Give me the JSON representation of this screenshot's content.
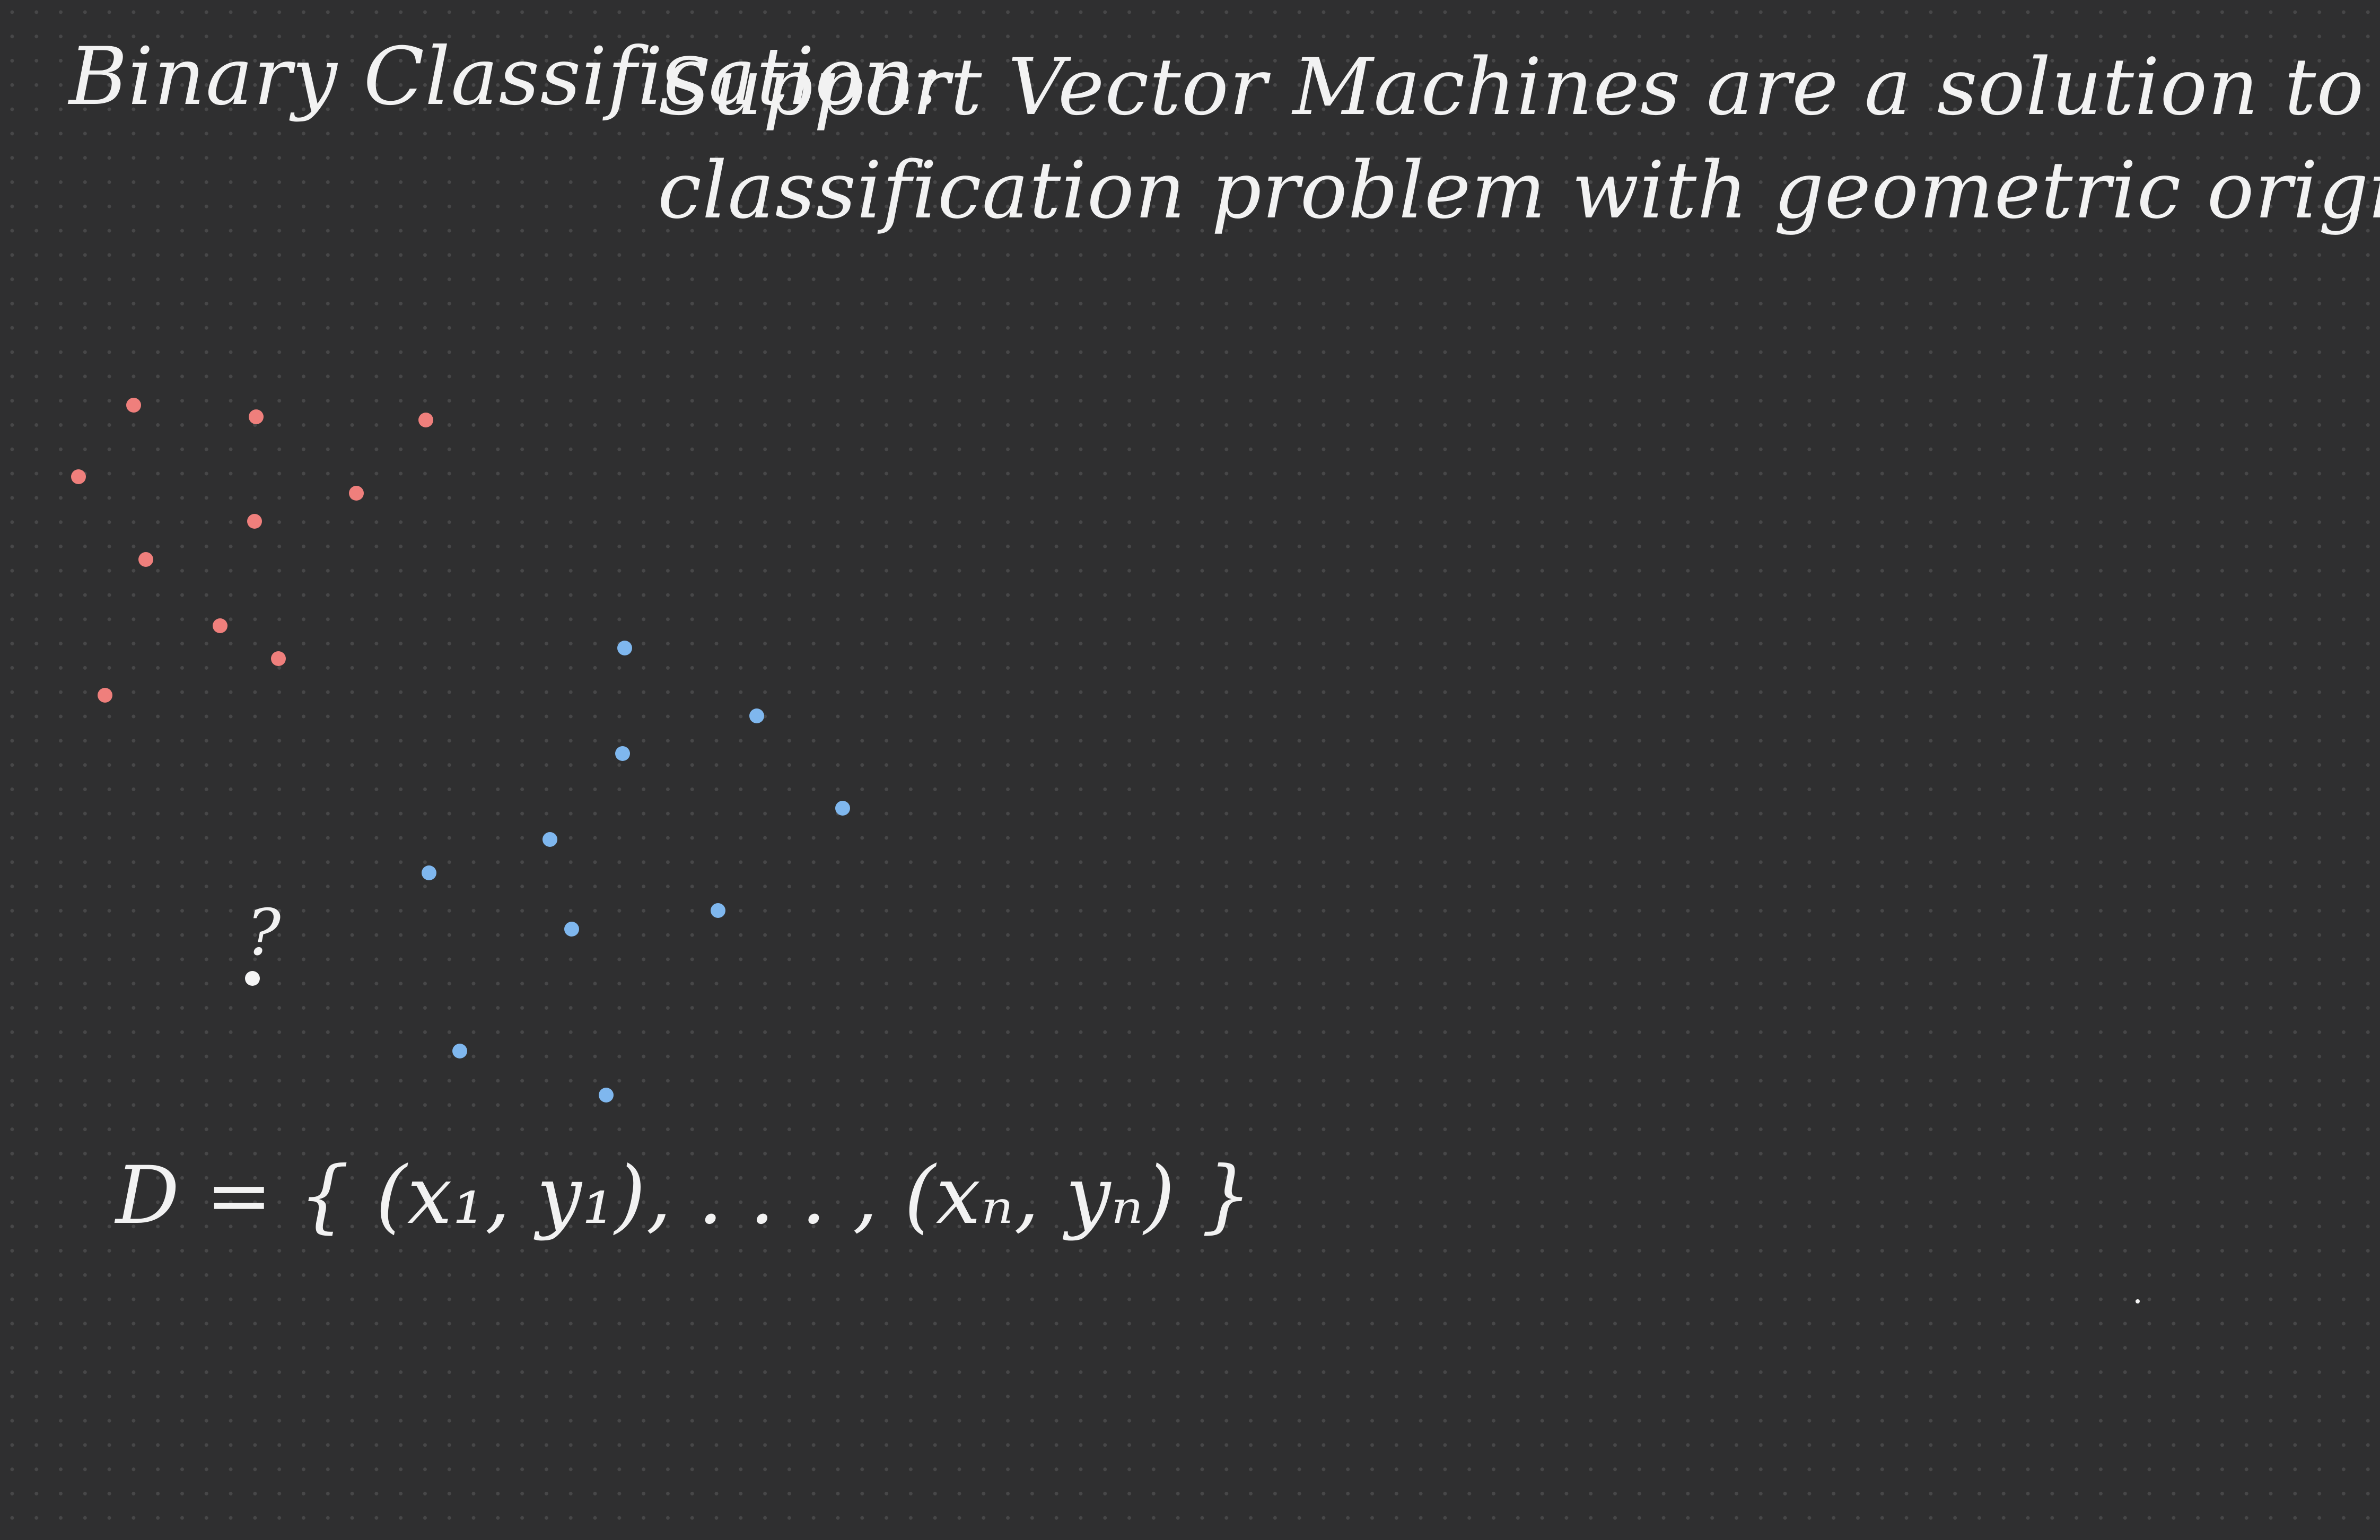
{
  "note": {
    "heading": "Binary Classification:",
    "body_line1": "Support Vector Machines are a solution to the binary",
    "body_line2": "classification problem with geometric origins.",
    "dataset_formula": "D = { (x₁, y₁), . . .  , (xₙ, yₙ) }",
    "query_label": "?"
  },
  "colors": {
    "background": "#2f2f30",
    "grid_dot": "#474748",
    "ink": "#f2f2f2",
    "class_red": "#ef7f7c",
    "class_blue": "#7fb7ee",
    "query_point": "#f5f5f5"
  }
}
